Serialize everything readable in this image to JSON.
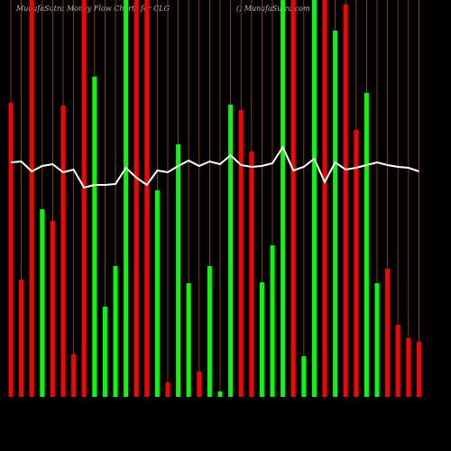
{
  "chart_data": {
    "type": "money-flow",
    "title": "MunafaSutra  Money  Flow  Charts for CLG",
    "subtitle": "() MunafaSutra.com",
    "ylim": [
      0,
      440
    ],
    "grid": true,
    "grid_color": "#a0520a",
    "line_color": "#ffffff",
    "series": [
      {
        "name": "Flow",
        "colors": [
          "#ff0000",
          "#ff0000",
          "#ff0000",
          "#00ff00",
          "#ff0000",
          "#ff0000",
          "#ff0000",
          "#ff0000",
          "#00ff00",
          "#00ff00",
          "#00ff00",
          "#00ff00",
          "#ff0000",
          "#ff0000",
          "#00ff00",
          "#ff0000",
          "#00ff00",
          "#00ff00",
          "#ff0000",
          "#00ff00",
          "#00ff00",
          "#00ff00",
          "#ff0000",
          "#ff0000",
          "#00ff00",
          "#00ff00",
          "#00ff00",
          "#ff0000",
          "#00ff00",
          "#00ff00",
          "#ff0000",
          "#00ff00",
          "#ff0000",
          "#ff0000",
          "#00ff00",
          "#00ff00",
          "#ff0000",
          "#ff0000",
          "#ff0000",
          "#ff0000"
        ],
        "values": [
          326,
          130,
          440,
          208,
          195,
          323,
          47,
          440,
          355,
          100,
          145,
          440,
          440,
          440,
          229,
          16,
          280,
          126,
          28,
          145,
          6,
          324,
          318,
          272,
          127,
          168,
          440,
          440,
          45,
          440,
          440,
          406,
          435,
          296,
          337,
          126,
          142,
          80,
          65,
          61
        ]
      },
      {
        "name": "Line",
        "values": [
          260,
          261,
          250,
          256,
          258,
          249,
          252,
          232,
          235,
          235,
          236,
          254,
          243,
          235,
          251,
          249,
          256,
          262,
          256,
          261,
          258,
          268,
          257,
          255,
          256,
          259,
          277,
          251,
          255,
          264,
          238,
          260,
          252,
          254,
          257,
          260,
          257,
          255,
          254,
          250
        ]
      }
    ]
  }
}
